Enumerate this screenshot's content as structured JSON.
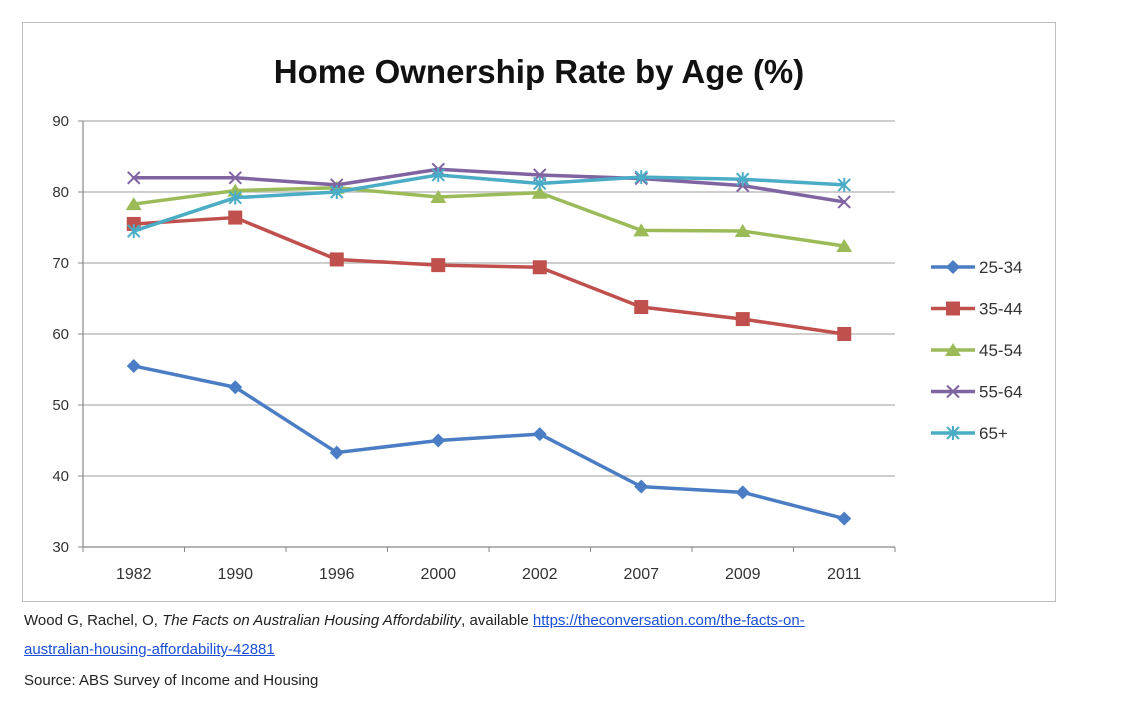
{
  "chart_data": {
    "type": "line",
    "title": "Home Ownership Rate by Age (%)",
    "xlabel": "",
    "ylabel": "",
    "categories": [
      "1982",
      "1990",
      "1996",
      "2000",
      "2002",
      "2007",
      "2009",
      "2011"
    ],
    "ylim": [
      30,
      90
    ],
    "yticks": [
      30,
      40,
      50,
      60,
      70,
      80,
      90
    ],
    "grid": true,
    "legend_position": "right",
    "series": [
      {
        "name": "25-34",
        "color": "#4a7dc4",
        "marker": "diamond",
        "values": [
          55.5,
          52.5,
          43.3,
          45.0,
          45.9,
          38.5,
          37.7,
          34.0
        ]
      },
      {
        "name": "35-44",
        "color": "#c0504d",
        "marker": "square",
        "values": [
          75.5,
          76.4,
          70.5,
          69.7,
          69.4,
          63.8,
          62.1,
          60.0
        ]
      },
      {
        "name": "45-54",
        "color": "#9bbb59",
        "marker": "triangle",
        "values": [
          78.3,
          80.2,
          80.6,
          79.3,
          79.9,
          74.6,
          74.5,
          72.4
        ]
      },
      {
        "name": "55-64",
        "color": "#8064a2",
        "marker": "x",
        "values": [
          82.0,
          82.0,
          81.0,
          83.2,
          82.4,
          81.9,
          80.9,
          78.6
        ]
      },
      {
        "name": "65+",
        "color": "#4bacc6",
        "marker": "star",
        "values": [
          74.5,
          79.2,
          80.0,
          82.4,
          81.2,
          82.1,
          81.8,
          81.0
        ]
      }
    ]
  },
  "citation": {
    "authors": "Wood G, Rachel, O,",
    "work_title": "The Facts on Australian Housing Affordability",
    "available_text": ", available",
    "link_part1": "https://theconversation.com/the-facts-on-",
    "link_part2": "australian-housing-affordability-42881",
    "source": "Source: ABS Survey of Income and Housing"
  }
}
